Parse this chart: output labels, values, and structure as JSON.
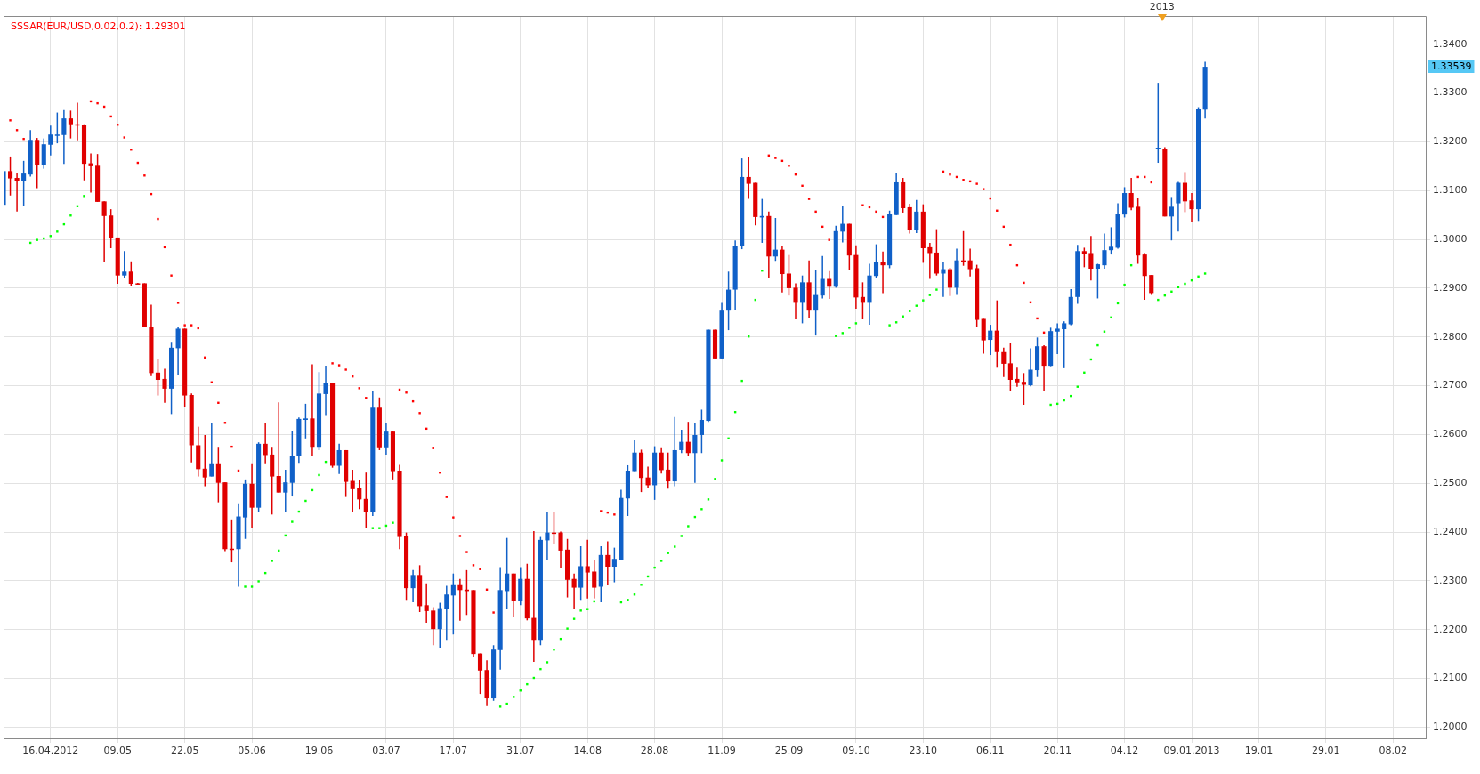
{
  "chart_data": {
    "type": "candlestick",
    "categories": [
      null,
      null,
      null,
      null,
      null,
      null,
      null,
      "16.04.2012",
      null,
      null,
      null,
      null,
      null,
      null,
      null,
      null,
      null,
      "09.05",
      null,
      null,
      null,
      null,
      null,
      null,
      null,
      null,
      null,
      "22.05",
      null,
      null,
      null,
      null,
      null,
      null,
      null,
      null,
      null,
      "05.06",
      null,
      null,
      null,
      null,
      null,
      null,
      null,
      null,
      null,
      "19.06",
      null,
      null,
      null,
      null,
      null,
      null,
      null,
      null,
      null,
      "03.07",
      null,
      null,
      null,
      null,
      null,
      null,
      null,
      null,
      null,
      "17.07",
      null,
      null,
      null,
      null,
      null,
      null,
      null,
      null,
      null,
      "31.07",
      null,
      null,
      null,
      null,
      null,
      null,
      null,
      null,
      null,
      "14.08",
      null,
      null,
      null,
      null,
      null,
      null,
      null,
      null,
      null,
      "28.08",
      null,
      null,
      null,
      null,
      null,
      null,
      null,
      null,
      null,
      "11.09",
      null,
      null,
      null,
      null,
      null,
      null,
      null,
      null,
      null,
      "25.09",
      null,
      null,
      null,
      null,
      null,
      null,
      null,
      null,
      null,
      "09.10",
      null,
      null,
      null,
      null,
      null,
      null,
      null,
      null,
      null,
      "23.10",
      null,
      null,
      null,
      null,
      null,
      null,
      null,
      null,
      null,
      "06.11",
      null,
      null,
      null,
      null,
      null,
      null,
      null,
      null,
      null,
      "20.11",
      null,
      null,
      null,
      null,
      null,
      null,
      null,
      null,
      null,
      "04.12",
      null,
      null,
      null,
      null,
      null,
      null,
      null,
      null,
      null,
      "09.01.2013",
      null,
      null,
      null,
      null,
      null,
      null,
      null,
      null,
      null,
      "19.01",
      null,
      null,
      null,
      null,
      null,
      null,
      null,
      null,
      null,
      "29.01",
      null,
      null,
      null,
      null,
      null,
      null,
      null,
      null,
      null,
      "08.02",
      null,
      null,
      null,
      null,
      null
    ],
    "ohlc": [
      [
        1.3071,
        1.315,
        1.306,
        1.314
      ],
      [
        1.314,
        1.317,
        1.309,
        1.3125
      ],
      [
        1.3126,
        1.3136,
        1.3057,
        1.3119
      ],
      [
        1.312,
        1.3161,
        1.3068,
        1.3135
      ],
      [
        1.3133,
        1.3224,
        1.3129,
        1.3204
      ],
      [
        1.3204,
        1.3208,
        1.3105,
        1.3152
      ],
      [
        1.3152,
        1.3207,
        1.3145,
        1.3195
      ],
      [
        1.3194,
        1.3233,
        1.3172,
        1.3215
      ],
      [
        1.3214,
        1.326,
        1.3197,
        1.3215
      ],
      [
        1.3214,
        1.3265,
        1.3155,
        1.3248
      ],
      [
        1.3248,
        1.3264,
        1.3207,
        1.3236
      ],
      [
        1.3236,
        1.328,
        1.3203,
        1.3234
      ],
      [
        1.3234,
        1.3236,
        1.3121,
        1.3155
      ],
      [
        1.3156,
        1.3176,
        1.3096,
        1.315
      ],
      [
        1.3151,
        1.3175,
        1.3077,
        1.3077
      ],
      [
        1.3078,
        1.3078,
        1.2953,
        1.3048
      ],
      [
        1.3049,
        1.3062,
        1.2982,
        1.3003
      ],
      [
        1.3004,
        1.3004,
        1.2909,
        1.2926
      ],
      [
        1.2926,
        1.2976,
        1.2922,
        1.2934
      ],
      [
        1.2934,
        1.2955,
        1.2904,
        1.2909
      ],
      [
        1.291,
        1.2911,
        1.2908,
        1.2909
      ],
      [
        1.291,
        1.291,
        1.282,
        1.282
      ],
      [
        1.2821,
        1.2866,
        1.272,
        1.2726
      ],
      [
        1.2727,
        1.2755,
        1.268,
        1.2712
      ],
      [
        1.2714,
        1.2735,
        1.2665,
        1.2694
      ],
      [
        1.2694,
        1.279,
        1.2642,
        1.2778
      ],
      [
        1.2777,
        1.282,
        1.2723,
        1.2817
      ],
      [
        1.2817,
        1.2817,
        1.2657,
        1.268
      ],
      [
        1.2681,
        1.2684,
        1.2543,
        1.2578
      ],
      [
        1.2578,
        1.2616,
        1.2514,
        1.2529
      ],
      [
        1.253,
        1.2599,
        1.2494,
        1.2512
      ],
      [
        1.2514,
        1.2623,
        1.2514,
        1.2541
      ],
      [
        1.2541,
        1.2573,
        1.2461,
        1.2501
      ],
      [
        1.2502,
        1.2502,
        1.2361,
        1.2365
      ],
      [
        1.2366,
        1.2426,
        1.2338,
        1.2365
      ],
      [
        1.2365,
        1.2459,
        1.2288,
        1.2432
      ],
      [
        1.243,
        1.2508,
        1.2386,
        1.2499
      ],
      [
        1.2499,
        1.2541,
        1.2409,
        1.245
      ],
      [
        1.245,
        1.2584,
        1.2441,
        1.2581
      ],
      [
        1.2581,
        1.2623,
        1.2541,
        1.2558
      ],
      [
        1.2559,
        1.2573,
        1.2436,
        1.2514
      ],
      [
        1.2515,
        1.2666,
        1.2481,
        1.2481
      ],
      [
        1.2481,
        1.2528,
        1.2442,
        1.2502
      ],
      [
        1.2501,
        1.2608,
        1.2473,
        1.2557
      ],
      [
        1.2556,
        1.2635,
        1.2542,
        1.2632
      ],
      [
        1.263,
        1.2663,
        1.2592,
        1.2633
      ],
      [
        1.2633,
        1.2744,
        1.2557,
        1.2573
      ],
      [
        1.2573,
        1.2728,
        1.2568,
        1.2684
      ],
      [
        1.2683,
        1.2741,
        1.2638,
        1.2705
      ],
      [
        1.2705,
        1.2705,
        1.2532,
        1.2536
      ],
      [
        1.2536,
        1.2581,
        1.2519,
        1.2568
      ],
      [
        1.2568,
        1.2568,
        1.2472,
        1.2503
      ],
      [
        1.2505,
        1.2528,
        1.2442,
        1.2488
      ],
      [
        1.249,
        1.2507,
        1.2447,
        1.2467
      ],
      [
        1.2468,
        1.2522,
        1.2408,
        1.2441
      ],
      [
        1.2441,
        1.269,
        1.2433,
        1.2655
      ],
      [
        1.2655,
        1.2676,
        1.2568,
        1.2572
      ],
      [
        1.2572,
        1.2624,
        1.2559,
        1.2606
      ],
      [
        1.2606,
        1.2606,
        1.2508,
        1.2525
      ],
      [
        1.2526,
        1.2538,
        1.2365,
        1.239
      ],
      [
        1.2392,
        1.2399,
        1.2261,
        1.2285
      ],
      [
        1.2285,
        1.2322,
        1.2256,
        1.2312
      ],
      [
        1.2312,
        1.2332,
        1.2236,
        1.2248
      ],
      [
        1.225,
        1.2295,
        1.2214,
        1.2238
      ],
      [
        1.2239,
        1.2246,
        1.2168,
        1.2201
      ],
      [
        1.2201,
        1.2255,
        1.2163,
        1.2244
      ],
      [
        1.2243,
        1.229,
        1.2179,
        1.2272
      ],
      [
        1.227,
        1.2315,
        1.219,
        1.2293
      ],
      [
        1.2293,
        1.2304,
        1.2218,
        1.2281
      ],
      [
        1.2282,
        1.2322,
        1.223,
        1.2279
      ],
      [
        1.2281,
        1.2281,
        1.2145,
        1.215
      ],
      [
        1.2151,
        1.2151,
        1.2068,
        1.2116
      ],
      [
        1.2117,
        1.2137,
        1.2043,
        1.2059
      ],
      [
        1.2059,
        1.2168,
        1.2054,
        1.2159
      ],
      [
        1.2158,
        1.2328,
        1.2118,
        1.2281
      ],
      [
        1.2279,
        1.2388,
        1.2243,
        1.2315
      ],
      [
        1.2315,
        1.2315,
        1.2227,
        1.2259
      ],
      [
        1.2259,
        1.2328,
        1.225,
        1.2304
      ],
      [
        1.2304,
        1.2335,
        1.2219,
        1.2223
      ],
      [
        1.2224,
        1.2402,
        1.2134,
        1.2179
      ],
      [
        1.2179,
        1.239,
        1.2168,
        1.2384
      ],
      [
        1.2383,
        1.2441,
        1.2343,
        1.2399
      ],
      [
        1.2399,
        1.2441,
        1.2375,
        1.2397
      ],
      [
        1.2399,
        1.2401,
        1.2326,
        1.2362
      ],
      [
        1.2364,
        1.2386,
        1.2266,
        1.2302
      ],
      [
        1.2304,
        1.2315,
        1.2243,
        1.2286
      ],
      [
        1.2286,
        1.2371,
        1.2261,
        1.233
      ],
      [
        1.233,
        1.2384,
        1.2264,
        1.2317
      ],
      [
        1.2319,
        1.2342,
        1.2264,
        1.2286
      ],
      [
        1.2288,
        1.2371,
        1.2256,
        1.2353
      ],
      [
        1.2353,
        1.2381,
        1.2291,
        1.2329
      ],
      [
        1.2329,
        1.2368,
        1.2297,
        1.2345
      ],
      [
        1.2343,
        1.2487,
        1.2343,
        1.247
      ],
      [
        1.2469,
        1.2537,
        1.2433,
        1.2526
      ],
      [
        1.2525,
        1.2588,
        1.2525,
        1.2563
      ],
      [
        1.2563,
        1.2569,
        1.2482,
        1.2511
      ],
      [
        1.2512,
        1.2534,
        1.2491,
        1.2496
      ],
      [
        1.2496,
        1.2576,
        1.2466,
        1.2563
      ],
      [
        1.2563,
        1.2572,
        1.252,
        1.2527
      ],
      [
        1.2528,
        1.2563,
        1.2489,
        1.2504
      ],
      [
        1.2504,
        1.2636,
        1.2494,
        1.2568
      ],
      [
        1.2568,
        1.261,
        1.2562,
        1.2585
      ],
      [
        1.2585,
        1.2626,
        1.2557,
        1.2562
      ],
      [
        1.2562,
        1.2623,
        1.2501,
        1.2599
      ],
      [
        1.2599,
        1.2651,
        1.2562,
        1.263
      ],
      [
        1.2628,
        1.2815,
        1.2626,
        1.2815
      ],
      [
        1.2815,
        1.2815,
        1.2756,
        1.2756
      ],
      [
        1.2756,
        1.287,
        1.2755,
        1.2854
      ],
      [
        1.2854,
        1.2934,
        1.2814,
        1.2897
      ],
      [
        1.2897,
        1.2998,
        1.2856,
        1.2986
      ],
      [
        1.2986,
        1.3166,
        1.298,
        1.3128
      ],
      [
        1.3128,
        1.3169,
        1.3083,
        1.3114
      ],
      [
        1.3116,
        1.3116,
        1.3029,
        1.3046
      ],
      [
        1.3045,
        1.3083,
        1.2993,
        1.3048
      ],
      [
        1.3048,
        1.3057,
        1.292,
        1.2965
      ],
      [
        1.2965,
        1.3044,
        1.2956,
        1.2979
      ],
      [
        1.2979,
        1.2986,
        1.2891,
        1.2929
      ],
      [
        1.293,
        1.2968,
        1.2885,
        1.29
      ],
      [
        1.2901,
        1.291,
        1.2836,
        1.287
      ],
      [
        1.287,
        1.2926,
        1.2828,
        1.2912
      ],
      [
        1.2912,
        1.2957,
        1.2839,
        1.2854
      ],
      [
        1.2854,
        1.2937,
        1.2803,
        1.2886
      ],
      [
        1.2885,
        1.2966,
        1.2879,
        1.2919
      ],
      [
        1.2919,
        1.2935,
        1.2878,
        1.2903
      ],
      [
        1.2903,
        1.3028,
        1.2901,
        1.3017
      ],
      [
        1.3016,
        1.3068,
        1.2994,
        1.3032
      ],
      [
        1.3032,
        1.3032,
        1.2938,
        1.2967
      ],
      [
        1.2968,
        1.2988,
        1.2858,
        1.2881
      ],
      [
        1.2882,
        1.2912,
        1.2836,
        1.287
      ],
      [
        1.287,
        1.295,
        1.2825,
        1.2926
      ],
      [
        1.2925,
        1.299,
        1.2921,
        1.2953
      ],
      [
        1.2953,
        1.2975,
        1.289,
        1.2947
      ],
      [
        1.2947,
        1.3059,
        1.2941,
        1.3052
      ],
      [
        1.305,
        1.3137,
        1.305,
        1.3117
      ],
      [
        1.3117,
        1.3126,
        1.3055,
        1.3064
      ],
      [
        1.3066,
        1.3073,
        1.3012,
        1.3019
      ],
      [
        1.3019,
        1.3081,
        1.3013,
        1.3057
      ],
      [
        1.3057,
        1.3072,
        1.2952,
        1.2982
      ],
      [
        1.2984,
        1.2993,
        1.2919,
        1.2972
      ],
      [
        1.2973,
        1.3021,
        1.2926,
        1.293
      ],
      [
        1.293,
        1.2953,
        1.2882,
        1.2939
      ],
      [
        1.2939,
        1.2942,
        1.2884,
        1.2901
      ],
      [
        1.2901,
        1.2981,
        1.2886,
        1.2957
      ],
      [
        1.2957,
        1.3017,
        1.2946,
        1.2955
      ],
      [
        1.2957,
        1.2981,
        1.2924,
        1.2939
      ],
      [
        1.2941,
        1.2948,
        1.2821,
        1.2835
      ],
      [
        1.2837,
        1.2837,
        1.2766,
        1.2793
      ],
      [
        1.2794,
        1.2825,
        1.2763,
        1.2813
      ],
      [
        1.2813,
        1.2875,
        1.2737,
        1.2769
      ],
      [
        1.2769,
        1.2778,
        1.2718,
        1.2745
      ],
      [
        1.2746,
        1.2788,
        1.269,
        1.2712
      ],
      [
        1.2714,
        1.2737,
        1.2698,
        1.2707
      ],
      [
        1.2708,
        1.2726,
        1.2661,
        1.2702
      ],
      [
        1.2701,
        1.2777,
        1.2699,
        1.2733
      ],
      [
        1.2732,
        1.2799,
        1.2718,
        1.2781
      ],
      [
        1.2781,
        1.2783,
        1.269,
        1.2741
      ],
      [
        1.2741,
        1.2819,
        1.274,
        1.2812
      ],
      [
        1.2811,
        1.2828,
        1.2765,
        1.2817
      ],
      [
        1.2816,
        1.2832,
        1.2736,
        1.2828
      ],
      [
        1.2826,
        1.2898,
        1.2824,
        1.2882
      ],
      [
        1.2882,
        1.2989,
        1.2868,
        1.2976
      ],
      [
        1.2976,
        1.2983,
        1.2943,
        1.2971
      ],
      [
        1.2972,
        1.3007,
        1.2916,
        1.294
      ],
      [
        1.294,
        1.295,
        1.2879,
        1.2949
      ],
      [
        1.2947,
        1.3012,
        1.294,
        1.2978
      ],
      [
        1.2978,
        1.3025,
        1.2969,
        1.2985
      ],
      [
        1.2983,
        1.3074,
        1.2981,
        1.3053
      ],
      [
        1.3051,
        1.3107,
        1.3045,
        1.3095
      ],
      [
        1.3095,
        1.3126,
        1.306,
        1.3065
      ],
      [
        1.3067,
        1.3085,
        1.295,
        1.2967
      ],
      [
        1.2969,
        1.2972,
        1.2876,
        1.2925
      ],
      [
        1.2927,
        1.2927,
        1.2886,
        1.289
      ],
      [
        1.3186,
        1.3321,
        1.3157,
        1.3188
      ],
      [
        1.3186,
        1.3189,
        1.3047,
        1.3047
      ],
      [
        1.3047,
        1.3087,
        1.2998,
        1.3067
      ],
      [
        1.3074,
        1.3118,
        1.3016,
        1.3116
      ],
      [
        1.3116,
        1.3138,
        1.3056,
        1.3078
      ],
      [
        1.308,
        1.3095,
        1.3036,
        1.3062
      ],
      [
        1.3062,
        1.3271,
        1.3038,
        1.3268
      ],
      [
        1.3266,
        1.3364,
        1.3248,
        1.33539
      ],
      null,
      null,
      null,
      null,
      null,
      null,
      null,
      null,
      null,
      null,
      null,
      null,
      null,
      null,
      null,
      null,
      null,
      null,
      null,
      null,
      null,
      null,
      null,
      null,
      null,
      null,
      null,
      null,
      null,
      null,
      null,
      null,
      null
    ],
    "colors": [
      "#1060c8",
      "#e00000",
      "#e00000",
      "#1060c8",
      "#1060c8",
      "#e00000",
      "#1060c8",
      "#1060c8",
      "#1060c8",
      "#1060c8",
      "#e00000",
      "#e00000",
      "#e00000",
      "#e00000",
      "#e00000",
      "#e00000",
      "#e00000",
      "#e00000",
      "#1060c8",
      "#e00000",
      "#e00000",
      "#e00000",
      "#e00000",
      "#e00000",
      "#e00000",
      "#1060c8",
      "#1060c8",
      "#e00000",
      "#e00000",
      "#e00000",
      "#e00000",
      "#1060c8",
      "#e00000",
      "#e00000",
      "#e00000",
      "#1060c8",
      "#1060c8",
      "#e00000",
      "#1060c8",
      "#e00000",
      "#e00000",
      "#e00000",
      "#1060c8",
      "#1060c8",
      "#1060c8",
      "#1060c8",
      "#e00000",
      "#1060c8",
      "#1060c8",
      "#e00000",
      "#1060c8",
      "#e00000",
      "#e00000",
      "#e00000",
      "#e00000",
      "#1060c8",
      "#e00000",
      "#1060c8",
      "#e00000",
      "#e00000",
      "#e00000",
      "#1060c8",
      "#e00000",
      "#e00000",
      "#e00000",
      "#1060c8",
      "#1060c8",
      "#1060c8",
      "#e00000",
      "#e00000",
      "#e00000",
      "#e00000",
      "#e00000",
      "#1060c8",
      "#1060c8",
      "#1060c8",
      "#e00000",
      "#1060c8",
      "#e00000",
      "#e00000",
      "#1060c8",
      "#1060c8",
      "#e00000",
      "#e00000",
      "#e00000",
      "#e00000",
      "#1060c8",
      "#e00000",
      "#e00000",
      "#1060c8",
      "#e00000",
      "#1060c8",
      "#1060c8",
      "#1060c8",
      "#1060c8",
      "#e00000",
      "#e00000",
      "#1060c8",
      "#e00000",
      "#e00000",
      "#1060c8",
      "#1060c8",
      "#e00000",
      "#1060c8",
      "#1060c8",
      "#1060c8",
      "#e00000",
      "#1060c8",
      "#1060c8",
      "#1060c8",
      "#1060c8",
      "#e00000",
      "#e00000",
      "#1060c8",
      "#e00000",
      "#1060c8",
      "#e00000",
      "#e00000",
      "#e00000",
      "#1060c8",
      "#e00000",
      "#1060c8",
      "#1060c8",
      "#e00000",
      "#1060c8",
      "#1060c8",
      "#e00000",
      "#e00000",
      "#e00000",
      "#1060c8",
      "#1060c8",
      "#e00000",
      "#1060c8",
      "#1060c8",
      "#e00000",
      "#e00000",
      "#1060c8",
      "#e00000",
      "#e00000",
      "#e00000",
      "#1060c8",
      "#e00000",
      "#1060c8",
      "#e00000",
      "#e00000",
      "#e00000",
      "#e00000",
      "#1060c8",
      "#e00000",
      "#e00000",
      "#e00000",
      "#e00000",
      "#e00000",
      "#1060c8",
      "#1060c8",
      "#e00000",
      "#1060c8",
      "#1060c8",
      "#1060c8",
      "#1060c8",
      "#1060c8",
      "#e00000",
      "#e00000",
      "#1060c8",
      "#1060c8",
      "#1060c8",
      "#1060c8",
      "#1060c8",
      "#e00000",
      "#e00000",
      "#e00000",
      "#e00000",
      "#1060c8",
      "#e00000",
      "#1060c8",
      "#1060c8",
      "#e00000",
      "#e00000",
      "#1060c8",
      "#1060c8",
      null,
      null,
      null,
      null,
      null,
      null,
      null,
      null,
      null,
      null,
      null,
      null,
      null,
      null,
      null,
      null,
      null,
      null,
      null,
      null,
      null,
      null,
      null,
      null,
      null,
      null,
      null,
      null,
      null,
      null,
      null,
      null,
      null
    ],
    "series": [
      {
        "name": "SSSAR(EUR/USD,0.02,0.2): 1.29301",
        "type": "scatter",
        "color": "#ff0000",
        "values": [
          null,
          1.3244,
          1.3224,
          1.3206,
          null,
          null,
          null,
          null,
          null,
          null,
          null,
          null,
          null,
          1.3283,
          1.3279,
          1.3272,
          1.3252,
          1.3235,
          1.3209,
          1.3184,
          1.3157,
          1.3131,
          1.3093,
          1.3042,
          1.2984,
          1.2926,
          1.287,
          1.2824,
          1.2824,
          1.2818,
          1.2758,
          1.2707,
          1.2665,
          1.2624,
          1.2575,
          1.2526,
          null,
          null,
          null,
          null,
          null,
          null,
          null,
          null,
          null,
          null,
          null,
          null,
          null,
          1.2746,
          1.2742,
          1.2733,
          1.2719,
          1.2695,
          1.2675,
          null,
          null,
          null,
          null,
          1.2692,
          1.2686,
          1.2668,
          1.2644,
          1.2612,
          1.2572,
          1.2522,
          1.2472,
          1.243,
          1.2392,
          1.2359,
          1.2332,
          1.2324,
          1.2282,
          1.2235,
          null,
          null,
          null,
          null,
          null,
          null,
          null,
          null,
          null,
          null,
          null,
          null,
          null,
          null,
          null,
          1.2443,
          1.244,
          1.2436,
          null,
          null,
          null,
          null,
          null,
          null,
          null,
          null,
          null,
          null,
          null,
          null,
          null,
          null,
          null,
          null,
          null,
          null,
          null,
          null,
          null,
          null,
          1.3172,
          1.3167,
          1.3161,
          1.3151,
          1.3133,
          1.311,
          1.3083,
          1.3057,
          1.3026,
          1.2999,
          null,
          null,
          null,
          null,
          1.307,
          1.3066,
          1.3057,
          1.3046,
          null,
          null,
          null,
          null,
          null,
          null,
          null,
          null,
          1.3139,
          1.3133,
          1.3128,
          1.3122,
          1.3119,
          1.3114,
          1.3103,
          1.3084,
          1.3059,
          1.3026,
          1.2989,
          1.2947,
          1.2911,
          1.2871,
          1.2838,
          1.2809,
          null,
          null,
          null,
          null,
          null,
          null,
          null,
          null,
          null,
          null,
          null,
          null,
          null,
          1.3128,
          1.3128,
          1.3117,
          null,
          null,
          null,
          null,
          null,
          null,
          null,
          null,
          null,
          null,
          null,
          null,
          null,
          null,
          null,
          null,
          null,
          null,
          null,
          null,
          null,
          null,
          null,
          null,
          null,
          null,
          null,
          null,
          null,
          null,
          null,
          null,
          null,
          null,
          null,
          null,
          null,
          null,
          null,
          null,
          null
        ]
      },
      {
        "type": "scatter",
        "color": "#00ff00",
        "values": [
          null,
          null,
          null,
          null,
          1.2993,
          1.2999,
          1.3002,
          1.3007,
          1.3016,
          1.3031,
          1.3049,
          1.3068,
          1.3089,
          null,
          null,
          null,
          null,
          null,
          null,
          null,
          null,
          null,
          null,
          null,
          null,
          null,
          null,
          null,
          null,
          null,
          null,
          null,
          null,
          null,
          null,
          null,
          1.2288,
          1.2288,
          1.2299,
          1.2316,
          1.2341,
          1.2362,
          1.2393,
          1.2421,
          1.2442,
          1.2464,
          1.2486,
          1.2517,
          1.2544,
          null,
          null,
          null,
          null,
          null,
          null,
          1.2408,
          1.2408,
          1.2413,
          1.2419,
          null,
          null,
          null,
          null,
          null,
          null,
          null,
          null,
          null,
          null,
          null,
          null,
          null,
          null,
          null,
          1.2042,
          1.2048,
          1.2062,
          1.2075,
          1.2088,
          1.2101,
          1.2119,
          1.2133,
          1.2159,
          1.2181,
          1.2202,
          1.2222,
          1.2239,
          1.2242,
          1.2258,
          null,
          null,
          null,
          1.2256,
          1.2261,
          1.2272,
          1.2292,
          1.2309,
          1.2327,
          1.2341,
          1.2357,
          1.237,
          1.2392,
          1.2412,
          1.2431,
          1.2447,
          1.2467,
          1.2509,
          1.2547,
          1.2592,
          1.2646,
          1.271,
          1.2801,
          1.2876,
          1.2936,
          null,
          null,
          null,
          null,
          null,
          null,
          null,
          null,
          null,
          null,
          1.2802,
          1.2808,
          1.2819,
          1.2828,
          null,
          null,
          null,
          null,
          1.2824,
          1.283,
          1.2842,
          1.2853,
          1.2864,
          1.2875,
          1.2886,
          1.2897,
          null,
          null,
          null,
          null,
          null,
          null,
          null,
          null,
          null,
          null,
          null,
          null,
          null,
          null,
          null,
          null,
          1.2661,
          1.2663,
          1.267,
          1.2679,
          1.2698,
          1.2727,
          1.2754,
          1.2783,
          1.2811,
          1.284,
          1.2869,
          1.2907,
          1.2947,
          null,
          null,
          null,
          1.2876,
          1.2885,
          1.2893,
          1.2902,
          1.2909,
          1.2916,
          1.2924,
          1.293,
          null,
          null,
          null,
          null,
          null,
          null,
          null,
          null,
          null,
          null,
          null,
          null,
          null,
          null,
          null,
          null,
          null,
          null,
          null,
          null,
          null,
          null,
          null,
          null,
          null,
          null,
          null,
          null,
          null,
          null,
          null,
          null,
          null
        ]
      }
    ],
    "ylim": [
      1.1977,
      1.3458
    ],
    "yticks": [
      {
        "value": 1.2,
        "label": "1.2000"
      },
      {
        "value": 1.21,
        "label": "1.2100"
      },
      {
        "value": 1.22,
        "label": "1.2200"
      },
      {
        "value": 1.23,
        "label": "1.2300"
      },
      {
        "value": 1.24,
        "label": "1.2400"
      },
      {
        "value": 1.25,
        "label": "1.2500"
      },
      {
        "value": 1.26,
        "label": "1.2600"
      },
      {
        "value": 1.27,
        "label": "1.2700"
      },
      {
        "value": 1.28,
        "label": "1.2800"
      },
      {
        "value": 1.29,
        "label": "1.2900"
      },
      {
        "value": 1.3,
        "label": "1.3000"
      },
      {
        "value": 1.31,
        "label": "1.3100"
      },
      {
        "value": 1.32,
        "label": "1.3200"
      },
      {
        "value": 1.33,
        "label": "1.3300"
      },
      {
        "value": 1.34,
        "label": "1.3400"
      }
    ],
    "annotations": [
      "2013",
      "1.33539"
    ],
    "grid": true,
    "legend": "top left",
    "marker": "square"
  }
}
